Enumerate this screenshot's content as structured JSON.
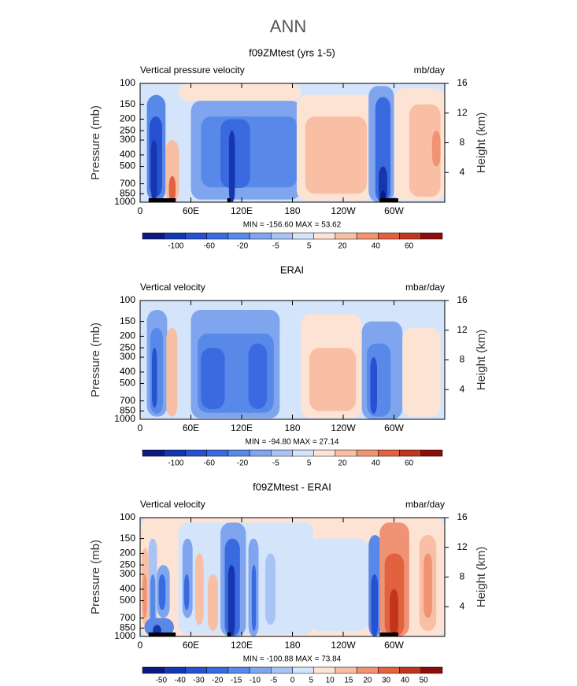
{
  "title": "ANN",
  "chart_data": [
    {
      "type": "contour",
      "title": "f09ZMtest (yrs 1-5)",
      "left_label": "Vertical pressure velocity",
      "right_label": "mb/day",
      "y_label": "Pressure (mb)",
      "y2_label": "Height (km)",
      "xlim": [
        0,
        360
      ],
      "xticks": [
        0,
        {
          "value": 60,
          "label": "60E"
        },
        {
          "value": 120,
          "label": "120E"
        },
        180,
        {
          "value": 240,
          "label": "120W"
        },
        {
          "value": 300,
          "label": "60W"
        }
      ],
      "ylim": [
        1000,
        100
      ],
      "log_scale": true,
      "yticks": [
        100,
        150,
        200,
        250,
        300,
        400,
        500,
        700,
        850,
        1000
      ],
      "y2lim": [
        0,
        16
      ],
      "y2ticks": [
        4,
        8,
        12,
        16
      ],
      "stats": "MIN = -156.60   MAX =  53.62",
      "colorbar": {
        "labels": [
          "-100",
          "-60",
          "-20",
          "-5",
          "5",
          "20",
          "40",
          "60"
        ],
        "colors": [
          "#0b1a80",
          "#1636b0",
          "#2651d0",
          "#3a6ae0",
          "#5888e8",
          "#7ea5ee",
          "#a8c4f4",
          "#d4e4fb",
          "#fde3d4",
          "#f8bfa4",
          "#f09374",
          "#e2623f",
          "#c2341d",
          "#8c0d0a"
        ]
      }
    },
    {
      "type": "contour",
      "title": "ERAI",
      "left_label": "Vertical velocity",
      "right_label": "mbar/day",
      "y_label": "Pressure (mb)",
      "y2_label": "Height (km)",
      "xlim": [
        0,
        360
      ],
      "xticks": [
        0,
        {
          "value": 60,
          "label": "60E"
        },
        {
          "value": 120,
          "label": "120E"
        },
        180,
        {
          "value": 240,
          "label": "120W"
        },
        {
          "value": 300,
          "label": "60W"
        }
      ],
      "ylim": [
        1000,
        100
      ],
      "log_scale": true,
      "yticks": [
        100,
        150,
        200,
        250,
        300,
        400,
        500,
        700,
        850,
        1000
      ],
      "y2lim": [
        0,
        16
      ],
      "y2ticks": [
        4,
        8,
        12,
        16
      ],
      "stats": "MIN = -94.80   MAX =  27.14",
      "colorbar": {
        "labels": [
          "-100",
          "-60",
          "-20",
          "-5",
          "5",
          "20",
          "40",
          "60"
        ],
        "colors": [
          "#0b1a80",
          "#1636b0",
          "#2651d0",
          "#3a6ae0",
          "#5888e8",
          "#7ea5ee",
          "#a8c4f4",
          "#d4e4fb",
          "#fde3d4",
          "#f8bfa4",
          "#f09374",
          "#e2623f",
          "#c2341d",
          "#8c0d0a"
        ]
      }
    },
    {
      "type": "contour",
      "title": "f09ZMtest - ERAI",
      "left_label": "Vertical velocity",
      "right_label": "mbar/day",
      "y_label": "Pressure (mb)",
      "y2_label": "Height (km)",
      "xlim": [
        0,
        360
      ],
      "xticks": [
        0,
        {
          "value": 60,
          "label": "60E"
        },
        {
          "value": 120,
          "label": "120E"
        },
        180,
        {
          "value": 240,
          "label": "120W"
        },
        {
          "value": 300,
          "label": "60W"
        }
      ],
      "ylim": [
        1000,
        100
      ],
      "log_scale": true,
      "yticks": [
        100,
        150,
        200,
        250,
        300,
        400,
        500,
        700,
        850,
        1000
      ],
      "y2lim": [
        0,
        16
      ],
      "y2ticks": [
        4,
        8,
        12,
        16
      ],
      "stats": "MIN = -100.88   MAX =  73.84",
      "colorbar": {
        "labels": [
          "-50",
          "-40",
          "-30",
          "-20",
          "-15",
          "-10",
          "-5",
          "0",
          "5",
          "10",
          "15",
          "20",
          "30",
          "40",
          "50"
        ],
        "colors": [
          "#0b1a80",
          "#1636b0",
          "#2651d0",
          "#3a6ae0",
          "#5888e8",
          "#7ea5ee",
          "#a8c4f4",
          "#d4e4fb",
          "#fde3d4",
          "#f8bfa4",
          "#f09374",
          "#e2623f",
          "#c2341d",
          "#8c0d0a"
        ]
      }
    }
  ]
}
